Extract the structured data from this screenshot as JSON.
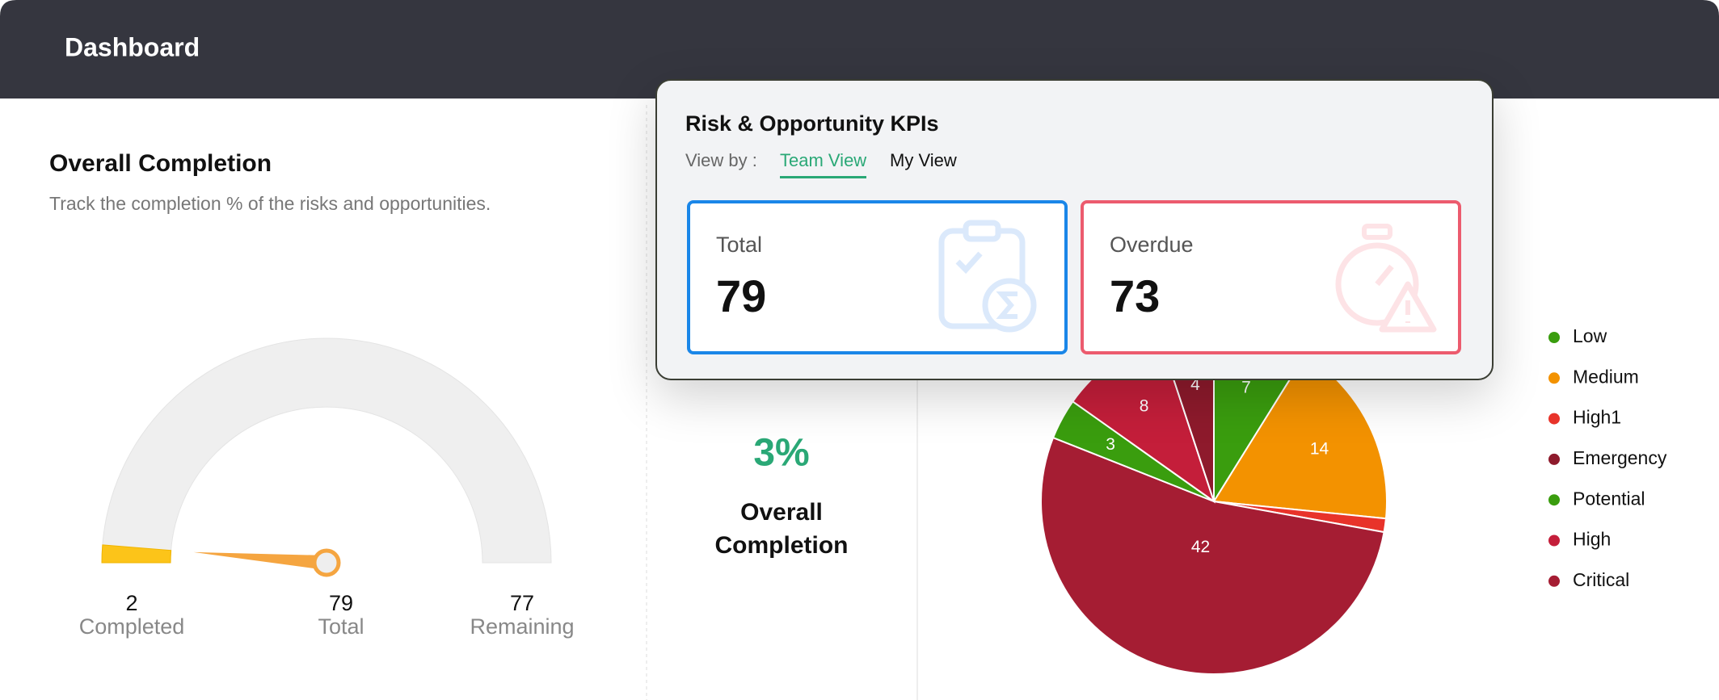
{
  "header": {
    "title": "Dashboard"
  },
  "completion": {
    "title": "Overall Completion",
    "subtitle": "Track the completion % of the risks and opportunities.",
    "gauge": {
      "completed": 2,
      "total": 79,
      "remaining": 77,
      "labels": [
        "Completed",
        "Total",
        "Remaining"
      ]
    }
  },
  "summary": {
    "value": 3,
    "value_label": "3%",
    "label_lines": [
      "Overall",
      "Completion"
    ]
  },
  "kpi": {
    "title": "Risk & Opportunity KPIs",
    "view_by": "View by :",
    "tabs": [
      "Team View",
      "My View"
    ],
    "cards": [
      {
        "label": "Total",
        "value": 79
      },
      {
        "label": "Overdue",
        "value": 73
      }
    ]
  },
  "chart_data": {
    "type": "pie",
    "categories": [
      "Low",
      "Medium",
      "High1",
      "Critical",
      "Potential",
      "High",
      "Emergency"
    ],
    "values": [
      7,
      14,
      1,
      42,
      3,
      8,
      4
    ],
    "colors": [
      "#3a9d0e",
      "#f39200",
      "#e8332a",
      "#a51d33",
      "#3a9d0e",
      "#c41e3a",
      "#8e1a2c"
    ]
  }
}
